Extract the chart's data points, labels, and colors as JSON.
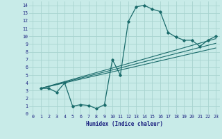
{
  "xlabel": "Humidex (Indice chaleur)",
  "background_color": "#c8ebe8",
  "grid_color": "#a8d4d0",
  "line_color": "#1a6b6b",
  "xlim": [
    -0.5,
    23.5
  ],
  "ylim": [
    0,
    14.5
  ],
  "xticks": [
    0,
    1,
    2,
    3,
    4,
    5,
    6,
    7,
    8,
    9,
    10,
    11,
    12,
    13,
    14,
    15,
    16,
    17,
    18,
    19,
    20,
    21,
    22,
    23
  ],
  "yticks": [
    0,
    1,
    2,
    3,
    4,
    5,
    6,
    7,
    8,
    9,
    10,
    11,
    12,
    13,
    14
  ],
  "line1_x": [
    1,
    2,
    3,
    4,
    5,
    6,
    7,
    8,
    9,
    10,
    11,
    12,
    13,
    14,
    15,
    16,
    17,
    18,
    19,
    20,
    21,
    22,
    23
  ],
  "line1_y": [
    3.3,
    3.3,
    2.8,
    4.0,
    1.0,
    1.2,
    1.1,
    0.7,
    1.2,
    7.0,
    5.0,
    11.9,
    13.8,
    14.0,
    13.5,
    13.2,
    10.5,
    9.9,
    9.5,
    9.5,
    8.7,
    9.5,
    10.0
  ],
  "line2_x": [
    1,
    23
  ],
  "line2_y": [
    3.3,
    9.7
  ],
  "line3_x": [
    1,
    23
  ],
  "line3_y": [
    3.3,
    8.5
  ],
  "line4_x": [
    1,
    23
  ],
  "line4_y": [
    3.3,
    9.1
  ]
}
